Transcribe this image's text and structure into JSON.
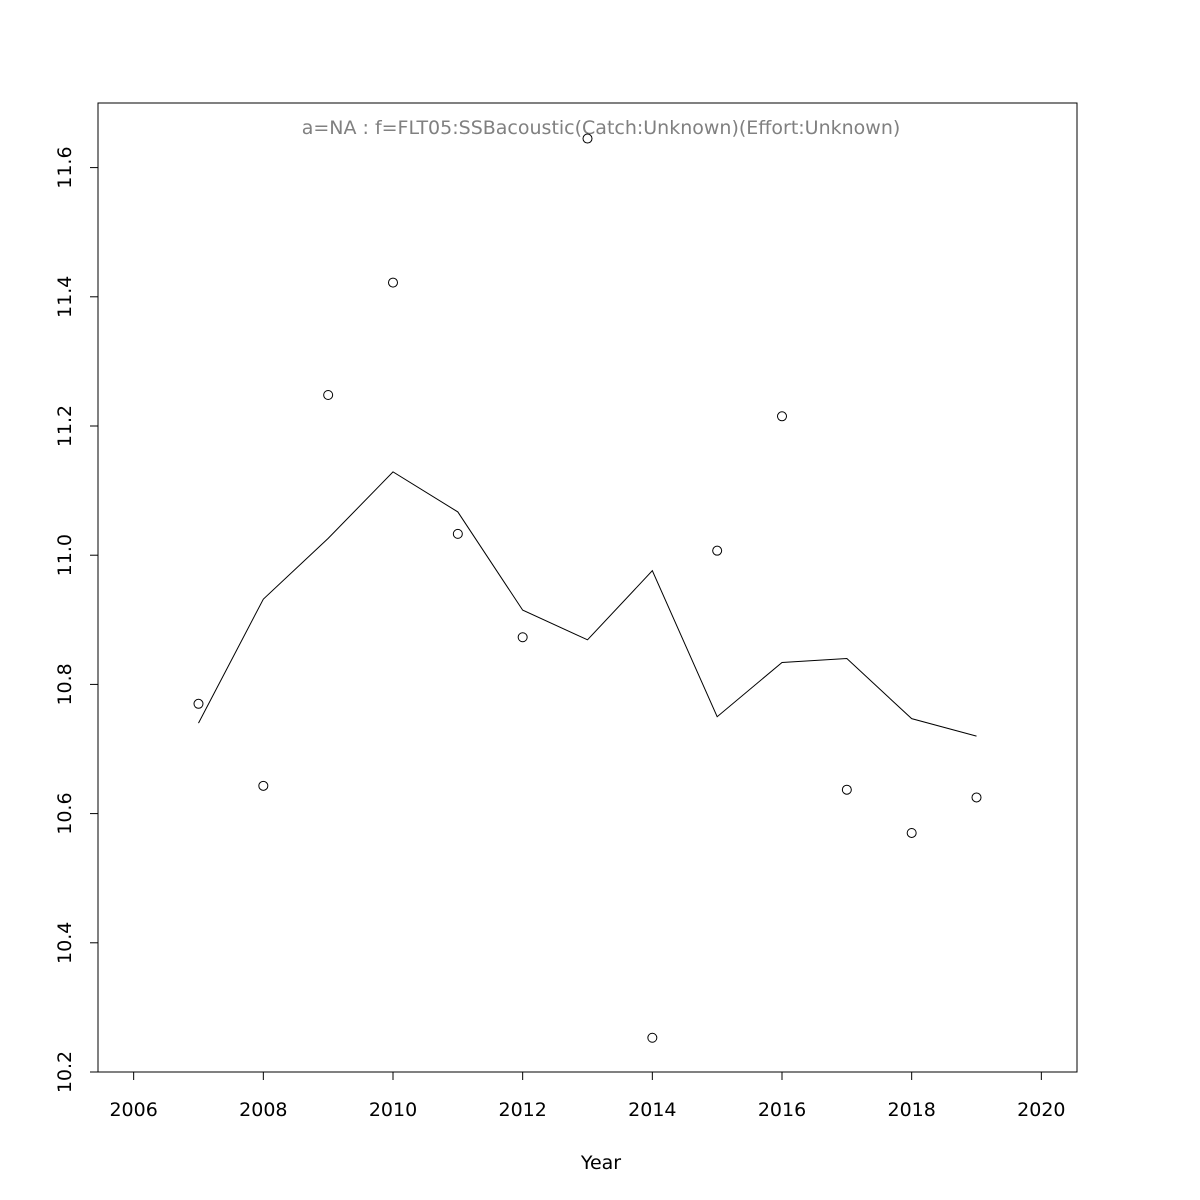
{
  "chart_data": {
    "type": "scatter",
    "title": "",
    "annotation": "a=NA  :  f=FLT05:SSBacoustic(Catch:Unknown)(Effort:Unknown)",
    "xlabel": "Year",
    "ylabel": "",
    "xlim": [
      2005.45,
      2020.55
    ],
    "ylim": [
      10.2,
      11.7
    ],
    "xticks": [
      2006,
      2008,
      2010,
      2012,
      2014,
      2016,
      2018,
      2020
    ],
    "yticks": [
      10.2,
      10.4,
      10.6,
      10.8,
      11.0,
      11.2,
      11.4,
      11.6
    ],
    "xtick_labels": [
      "2006",
      "2008",
      "2010",
      "2012",
      "2014",
      "2016",
      "2018",
      "2020"
    ],
    "ytick_labels": [
      "10.2",
      "10.4",
      "10.6",
      "10.8",
      "11.0",
      "11.2",
      "11.4",
      "11.6"
    ],
    "grid": false,
    "colors": {
      "points": "#000000",
      "line": "#000000",
      "annotation": "#808080",
      "frame": "#000000"
    },
    "series": [
      {
        "kind": "points",
        "marker": "open-circle",
        "x": [
          2007,
          2008,
          2009,
          2010,
          2011,
          2012,
          2013,
          2014,
          2015,
          2016,
          2017,
          2018,
          2019
        ],
        "y": [
          10.77,
          10.643,
          11.248,
          11.422,
          11.033,
          10.873,
          11.645,
          10.253,
          11.007,
          11.215,
          10.637,
          10.57,
          10.625
        ]
      },
      {
        "kind": "line",
        "x": [
          2007,
          2008,
          2009,
          2010,
          2011,
          2012,
          2013,
          2014,
          2015,
          2016,
          2017,
          2018,
          2019
        ],
        "y": [
          10.74,
          10.932,
          11.026,
          11.129,
          11.067,
          10.915,
          10.869,
          10.976,
          10.75,
          10.834,
          10.84,
          10.747,
          10.72
        ]
      }
    ]
  }
}
